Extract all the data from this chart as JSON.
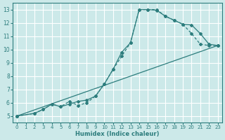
{
  "background_color": "#cce9e9",
  "grid_color": "#ffffff",
  "line_color": "#2d7d7d",
  "xlabel": "Humidex (Indice chaleur)",
  "xlim": [
    -0.5,
    23.5
  ],
  "ylim": [
    4.5,
    13.5
  ],
  "xticks": [
    0,
    1,
    2,
    3,
    4,
    5,
    6,
    7,
    8,
    9,
    10,
    11,
    12,
    13,
    14,
    15,
    16,
    17,
    18,
    19,
    20,
    21,
    22,
    23
  ],
  "yticks": [
    5,
    6,
    7,
    8,
    9,
    10,
    11,
    12,
    13
  ],
  "line1_x": [
    0,
    2,
    3,
    4,
    5,
    6,
    7,
    8,
    9,
    10,
    11,
    12,
    13,
    14,
    15,
    16,
    17,
    18,
    19,
    20,
    21,
    22,
    23
  ],
  "line1_y": [
    5.0,
    5.2,
    5.5,
    5.9,
    5.7,
    5.9,
    6.1,
    6.2,
    6.5,
    7.4,
    8.5,
    9.8,
    10.5,
    13.0,
    13.0,
    12.95,
    12.5,
    12.2,
    11.9,
    11.85,
    11.2,
    10.4,
    10.3
  ],
  "line2_x": [
    0,
    2,
    3,
    4,
    5,
    6,
    7,
    8,
    9,
    10,
    11,
    12,
    13,
    14,
    15,
    16,
    17,
    18,
    19,
    20,
    21,
    22,
    23
  ],
  "line2_y": [
    5.0,
    5.2,
    5.5,
    5.9,
    5.7,
    6.1,
    5.8,
    6.0,
    6.5,
    7.4,
    8.5,
    9.5,
    10.5,
    13.0,
    13.0,
    13.0,
    12.5,
    12.2,
    11.9,
    11.2,
    10.4,
    10.3,
    10.3
  ],
  "line3_x": [
    0,
    23
  ],
  "line3_y": [
    5.0,
    10.3
  ]
}
